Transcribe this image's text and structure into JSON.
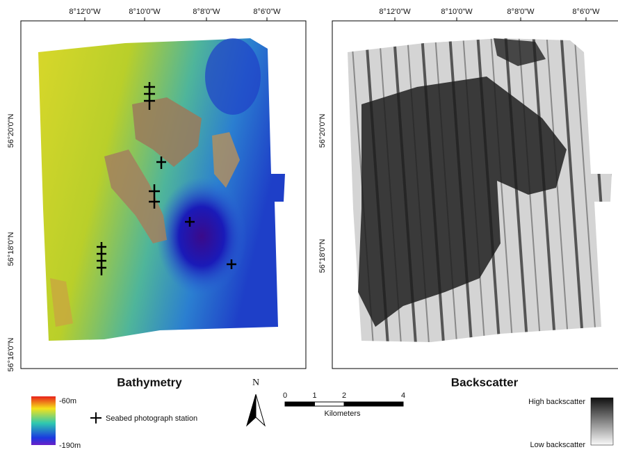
{
  "panels": [
    {
      "title": "Bathymetry",
      "lon_ticks": [
        "8°12'0\"W",
        "8°10'0\"W",
        "8°8'0\"W",
        "8°6'0\"W"
      ],
      "lat_ticks": [
        "56°20'0\"N",
        "56°18'0\"N",
        "56°16'0\"N"
      ]
    },
    {
      "title": "Backscatter",
      "lon_ticks": [
        "8°12'0\"W",
        "8°10'0\"W",
        "8°8'0\"W",
        "8°6'0\"W"
      ],
      "lat_ticks": [
        "56°20'0\"N",
        "56°18'0\"N"
      ]
    }
  ],
  "depth_legend": {
    "top": "-60m",
    "bottom": "-190m"
  },
  "station_legend": "Seabed photograph station",
  "north": "N",
  "scale_bar": {
    "ticks": [
      0,
      1,
      2,
      4
    ],
    "unit": "Kilometers"
  },
  "backscatter_legend": {
    "high": "High backscatter",
    "low": "Low backscatter"
  }
}
